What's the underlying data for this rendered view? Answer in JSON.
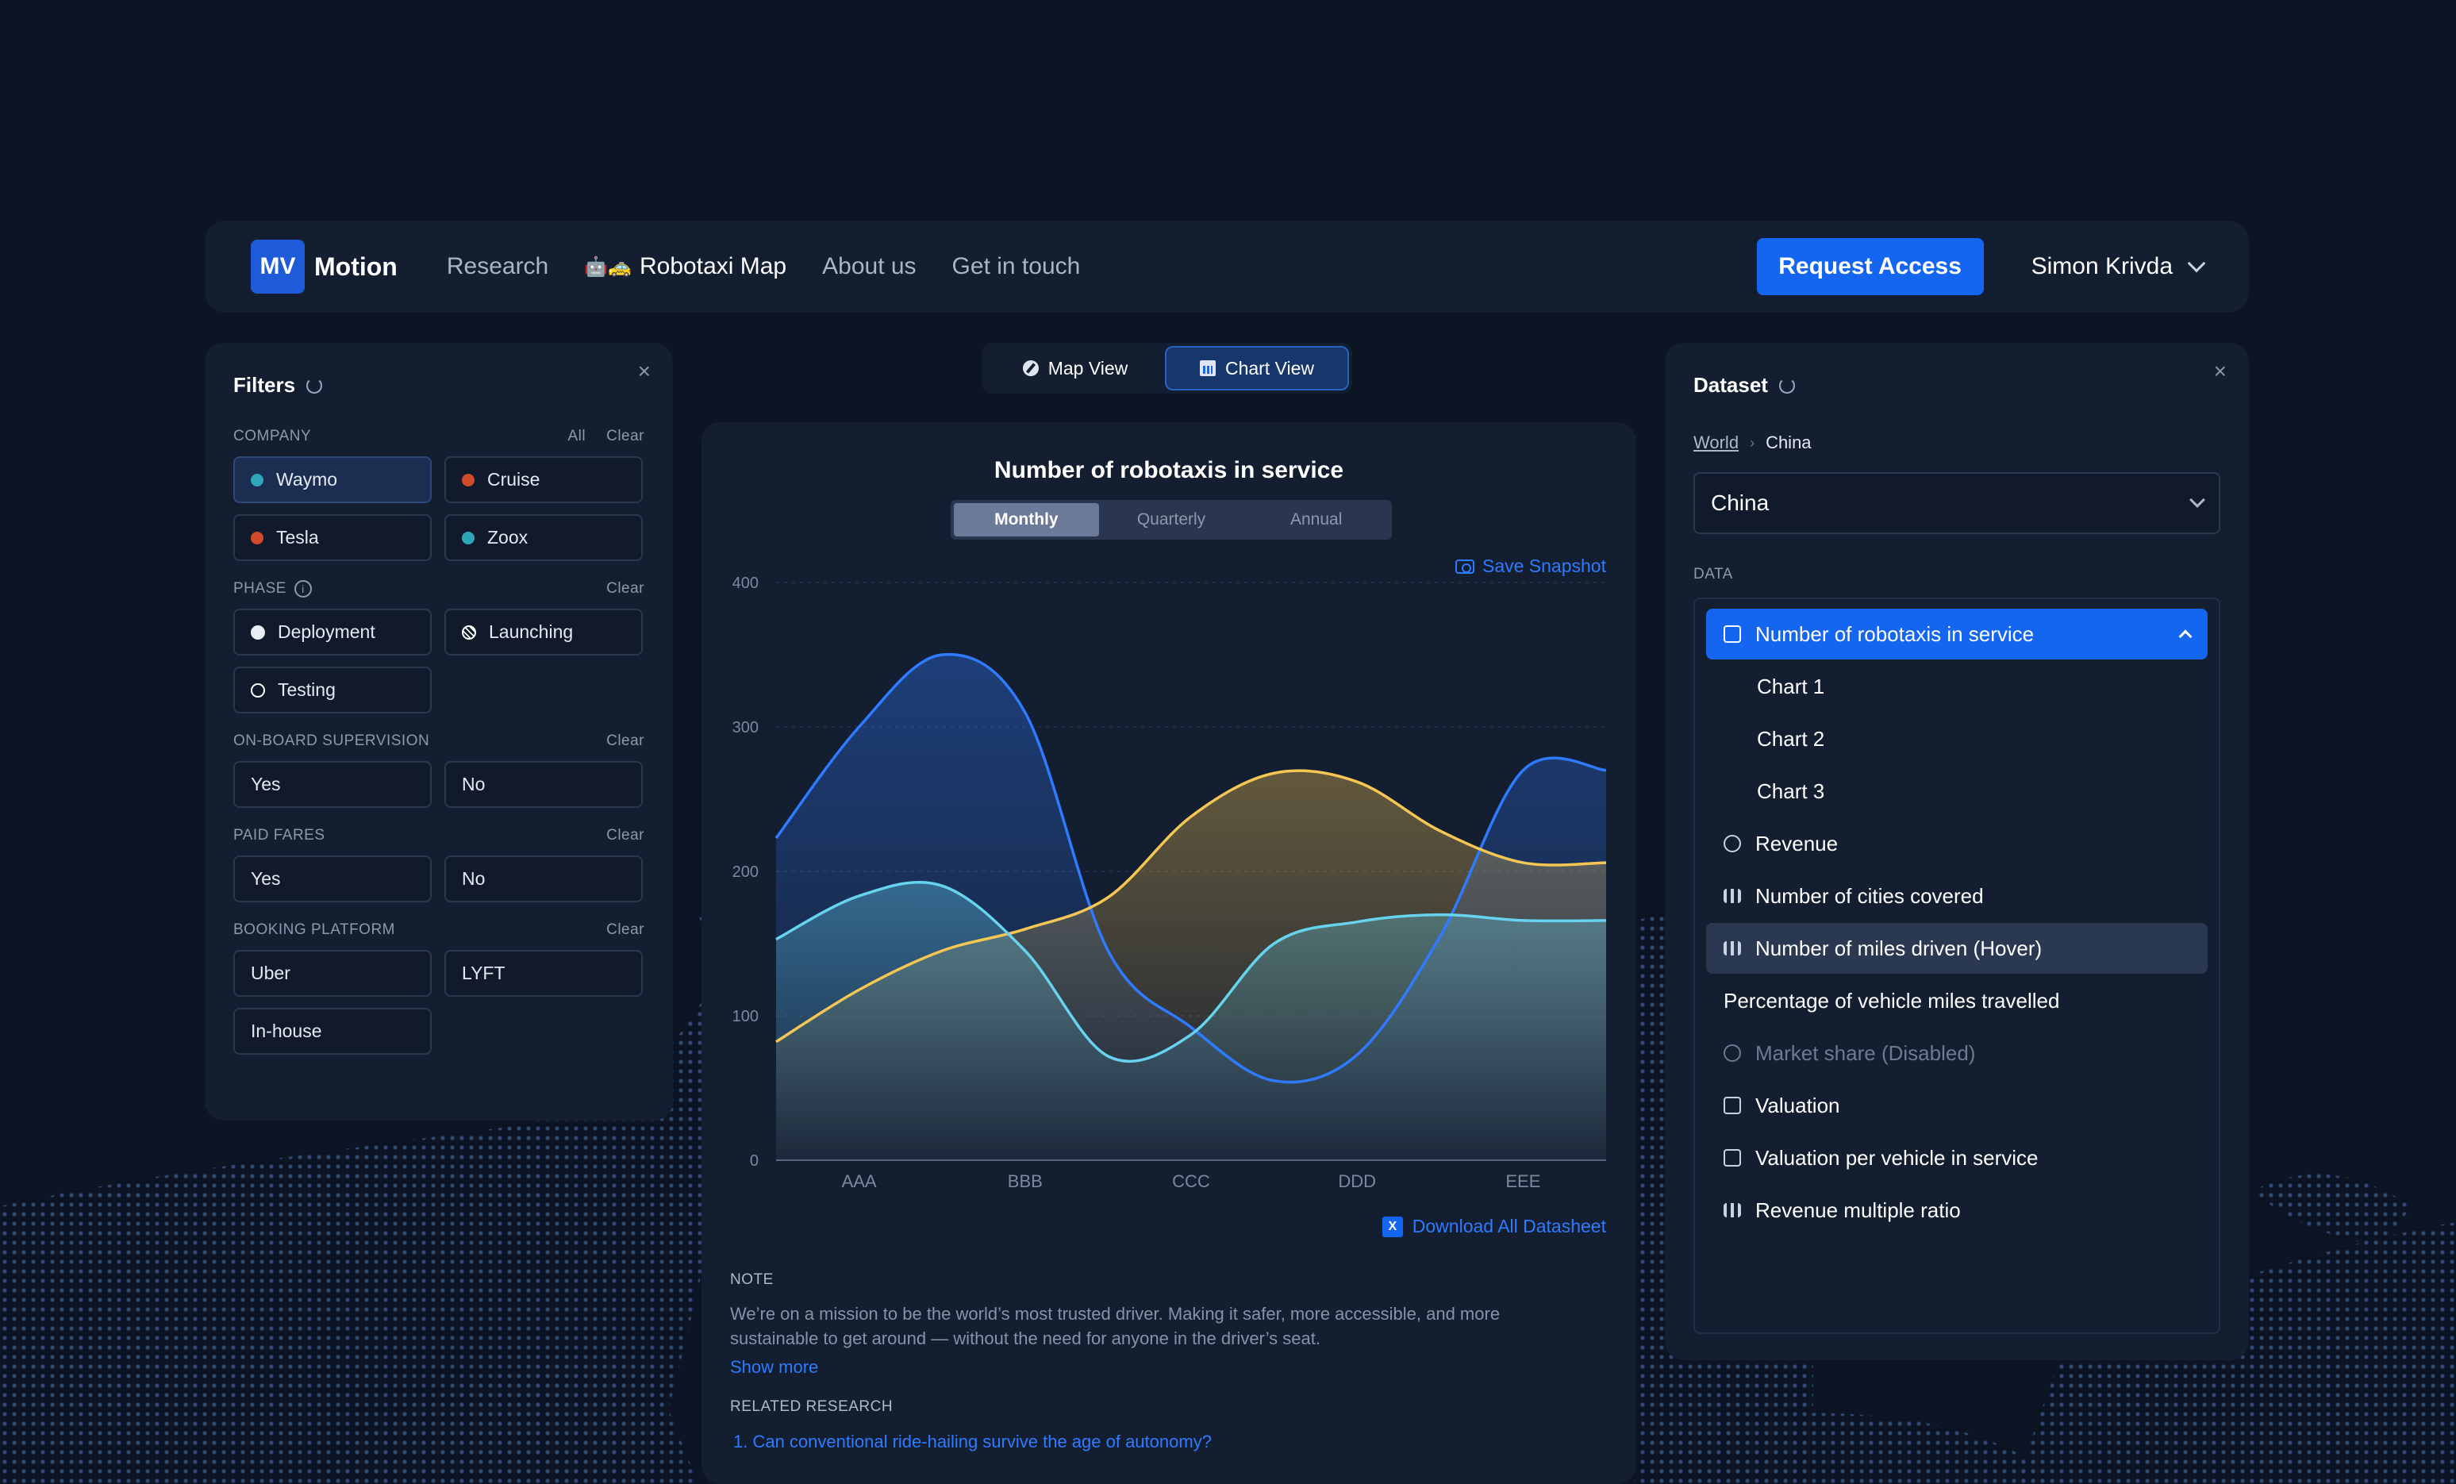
{
  "nav": {
    "logo_badge": "MV",
    "logo_text": "Motion",
    "links": [
      "Research",
      "Robotaxi Map",
      "About us",
      "Get in touch"
    ],
    "request_access": "Request Access",
    "user_name": "Simon Krivda"
  },
  "filters": {
    "title": "Filters",
    "company": {
      "label": "COMPANY",
      "all": "All",
      "clear": "Clear",
      "items": [
        {
          "label": "Waymo",
          "color": "#2fa6b8",
          "selected": true
        },
        {
          "label": "Cruise",
          "color": "#d14b2a"
        },
        {
          "label": "Tesla",
          "color": "#d14b2a"
        },
        {
          "label": "Zoox",
          "color": "#2fa6b8"
        }
      ]
    },
    "phase": {
      "label": "PHASE",
      "clear": "Clear",
      "items": [
        "Deployment",
        "Launching",
        "Testing"
      ]
    },
    "supervision": {
      "label": "ON-BOARD SUPERVISION",
      "clear": "Clear",
      "items": [
        "Yes",
        "No"
      ]
    },
    "fares": {
      "label": "PAID FARES",
      "clear": "Clear",
      "items": [
        "Yes",
        "No"
      ]
    },
    "booking": {
      "label": "BOOKING PLATFORM",
      "clear": "Clear",
      "items": [
        "Uber",
        "LYFT",
        "In-house"
      ]
    }
  },
  "view_toggle": {
    "map": "Map View",
    "chart": "Chart View"
  },
  "chart_panel": {
    "periods": [
      "Monthly",
      "Quarterly",
      "Annual"
    ],
    "save_snapshot": "Save Snapshot",
    "download": "Download All Datasheet",
    "note_label": "NOTE",
    "note_text": "We’re on a mission to be the world’s most trusted driver. Making it safer, more accessible, and more sustainable to get around — without the need for anyone in the driver’s seat.",
    "show_more": "Show more",
    "related_label": "RELATED RESEARCH",
    "related_items": [
      "1.  Can conventional ride-hailing survive the age of autonomy?"
    ]
  },
  "chart_data": {
    "type": "area",
    "title": "Number of robotaxis in service",
    "ylim": [
      0,
      400
    ],
    "yticks": [
      0,
      100,
      200,
      300,
      400
    ],
    "categories": [
      "AAA",
      "BBB",
      "CCC",
      "DDD",
      "EEE"
    ],
    "x": [
      0,
      1,
      2,
      3,
      4,
      5,
      6,
      7,
      8,
      9,
      10
    ],
    "grid": true,
    "series": [
      {
        "color": "#2f7bff",
        "values": [
          223,
          300,
          350,
          310,
          145,
          92,
          55,
          73,
          155,
          270,
          270
        ]
      },
      {
        "color": "#f5c653",
        "values": [
          82,
          118,
          145,
          160,
          182,
          238,
          268,
          262,
          228,
          206,
          206
        ]
      },
      {
        "color": "#67d3ee",
        "values": [
          153,
          183,
          190,
          145,
          72,
          87,
          150,
          165,
          170,
          166,
          166
        ]
      }
    ]
  },
  "dataset": {
    "title": "Dataset",
    "breadcrumb": [
      "World",
      "China"
    ],
    "selected_region": "China",
    "data_label": "DATA",
    "items": [
      {
        "label": "Number of robotaxis in service",
        "state": "selected"
      },
      {
        "label": "Chart 1",
        "state": "sub"
      },
      {
        "label": "Chart 2",
        "state": "sub"
      },
      {
        "label": "Chart 3",
        "state": "sub"
      },
      {
        "label": "Revenue",
        "state": "normal"
      },
      {
        "label": "Number of cities covered",
        "state": "normal"
      },
      {
        "label": "Number of  miles driven (Hover)",
        "state": "hover"
      },
      {
        "label": "Percentage of  vehicle miles travelled",
        "state": "noicon"
      },
      {
        "label": "Market share (Disabled)",
        "state": "disabled"
      },
      {
        "label": "Valuation",
        "state": "normal"
      },
      {
        "label": "Valuation per vehicle in service",
        "state": "normal"
      },
      {
        "label": "Revenue multiple ratio",
        "state": "normal"
      }
    ]
  }
}
